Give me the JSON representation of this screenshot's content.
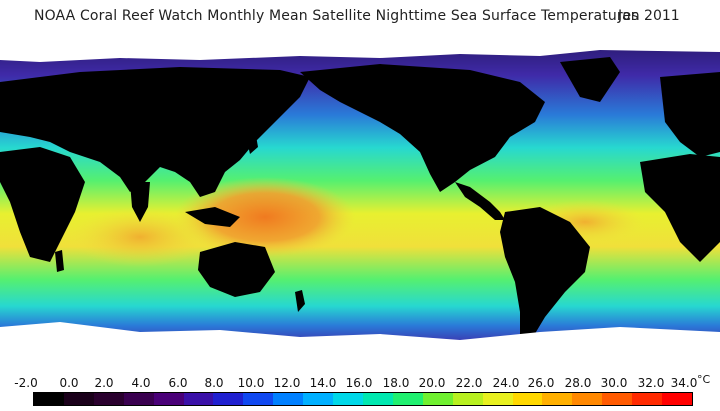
{
  "header": {
    "title": "NOAA Coral Reef Watch Monthly Mean Satellite Nighttime Sea Surface Temperatures",
    "date": "Jan 2011"
  },
  "legend": {
    "ticks": [
      "-2.0",
      "0.0",
      "2.0",
      "4.0",
      "6.0",
      "8.0",
      "10.0",
      "12.0",
      "14.0",
      "16.0",
      "18.0",
      "20.0",
      "22.0",
      "24.0",
      "26.0",
      "28.0",
      "30.0",
      "32.0",
      "34.0"
    ],
    "unit": "°C",
    "colors": [
      "#000000",
      "#1a001a",
      "#2a002e",
      "#3a0050",
      "#4a0078",
      "#3a10a8",
      "#2020d0",
      "#1048f0",
      "#0080ff",
      "#00b0ff",
      "#00d8e8",
      "#00e8b0",
      "#20f070",
      "#70f030",
      "#b8f020",
      "#e8f020",
      "#ffd800",
      "#ffb000",
      "#ff8800",
      "#ff5a00",
      "#ff2a00",
      "#ff0000"
    ]
  },
  "map": {
    "land_color": "#000000",
    "ice_color": "#ffffff",
    "ocean_colors": {
      "polar": "#3b1e8a",
      "cold": "#2a7ad8",
      "cool": "#27d8d0",
      "temperate": "#55f070",
      "warm": "#f0e03a",
      "hot": "#f08a28"
    }
  }
}
